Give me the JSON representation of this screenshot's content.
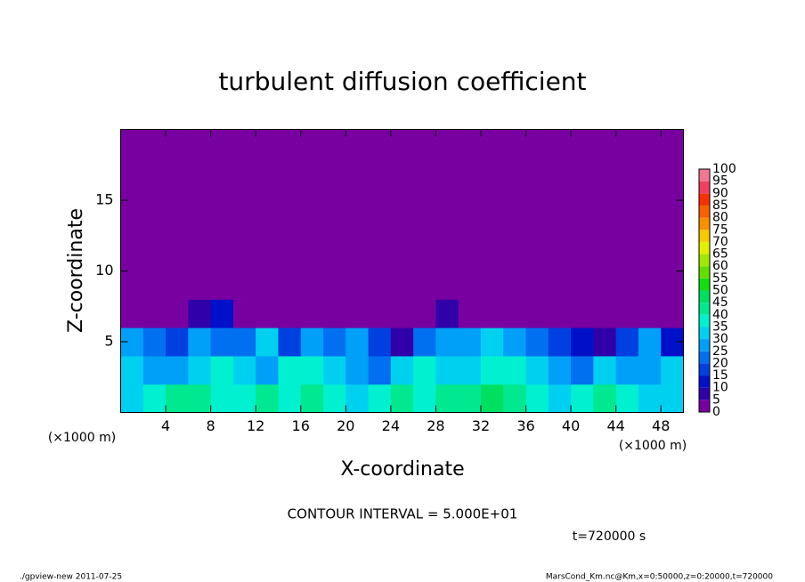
{
  "chart_data": {
    "type": "heatmap",
    "title": "turbulent diffusion coefficient",
    "xlabel": "X-coordinate",
    "ylabel": "Z-coordinate",
    "xunit": "(×1000 m)",
    "yunit": "(×1000 m)",
    "xlim": [
      0,
      50
    ],
    "ylim": [
      0,
      20
    ],
    "xticks": [
      4,
      8,
      12,
      16,
      20,
      24,
      28,
      32,
      36,
      40,
      44,
      48
    ],
    "yticks": [
      5,
      10,
      15
    ],
    "x": [
      1,
      3,
      5,
      7,
      9,
      11,
      13,
      15,
      17,
      19,
      21,
      23,
      25,
      27,
      29,
      31,
      33,
      35,
      37,
      39,
      41,
      43,
      45,
      47,
      49
    ],
    "y": [
      1,
      3,
      5,
      7,
      9,
      11,
      13,
      15,
      17,
      19
    ],
    "values": [
      [
        32,
        35,
        40,
        42,
        38,
        35,
        40,
        38,
        42,
        35,
        33,
        38,
        40,
        35,
        40,
        42,
        45,
        40,
        35,
        33,
        38,
        40,
        35,
        30,
        32
      ],
      [
        30,
        28,
        25,
        33,
        35,
        30,
        28,
        35,
        38,
        30,
        25,
        20,
        30,
        35,
        33,
        30,
        38,
        35,
        30,
        25,
        20,
        30,
        28,
        25,
        30
      ],
      [
        25,
        20,
        15,
        25,
        20,
        22,
        30,
        15,
        28,
        20,
        25,
        15,
        8,
        20,
        28,
        25,
        30,
        25,
        20,
        15,
        10,
        5,
        18,
        28,
        10
      ],
      [
        0,
        0,
        0,
        5,
        10,
        0,
        0,
        0,
        0,
        0,
        0,
        0,
        0,
        0,
        5,
        0,
        0,
        0,
        0,
        0,
        0,
        0,
        0,
        0,
        0
      ],
      [
        0,
        0,
        0,
        0,
        0,
        0,
        0,
        0,
        0,
        0,
        0,
        0,
        0,
        0,
        0,
        0,
        0,
        0,
        0,
        0,
        0,
        0,
        0,
        0,
        0
      ],
      [
        0,
        0,
        0,
        0,
        0,
        0,
        0,
        0,
        0,
        0,
        0,
        0,
        0,
        0,
        0,
        0,
        0,
        0,
        0,
        0,
        0,
        0,
        0,
        0,
        0
      ],
      [
        0,
        0,
        0,
        0,
        0,
        0,
        0,
        0,
        0,
        0,
        0,
        0,
        0,
        0,
        0,
        0,
        0,
        0,
        0,
        0,
        0,
        0,
        0,
        0,
        0
      ],
      [
        0,
        0,
        0,
        0,
        0,
        0,
        0,
        0,
        0,
        0,
        0,
        0,
        0,
        0,
        0,
        0,
        0,
        0,
        0,
        0,
        0,
        0,
        0,
        0,
        0
      ],
      [
        0,
        0,
        0,
        0,
        0,
        0,
        0,
        0,
        0,
        0,
        0,
        0,
        0,
        0,
        0,
        0,
        0,
        0,
        0,
        0,
        0,
        0,
        0,
        0,
        0
      ],
      [
        0,
        0,
        0,
        0,
        0,
        0,
        0,
        0,
        0,
        0,
        0,
        0,
        0,
        0,
        0,
        0,
        0,
        0,
        0,
        0,
        0,
        0,
        0,
        0,
        0
      ]
    ],
    "levels": [
      0,
      5,
      10,
      15,
      20,
      25,
      30,
      35,
      40,
      45,
      50,
      55,
      60,
      65,
      70,
      75,
      80,
      85,
      90,
      95,
      100
    ],
    "colors": [
      "#7800a0",
      "#3000a8",
      "#0010c8",
      "#0040e0",
      "#0070f0",
      "#00a0f8",
      "#00d0f0",
      "#00f0d0",
      "#00e890",
      "#00e060",
      "#10e010",
      "#60e000",
      "#a0e800",
      "#e0f000",
      "#f8c800",
      "#f89000",
      "#f86000",
      "#f83000",
      "#f04060",
      "#f07890"
    ],
    "contour_interval": "CONTOUR INTERVAL = 5.000E+01",
    "time_label": "t=720000 s",
    "footer_left": "./gpview-new   2011-07-25",
    "footer_right": "MarsCond_Km.nc@Km,x=0:50000,z=0:20000,t=720000"
  }
}
